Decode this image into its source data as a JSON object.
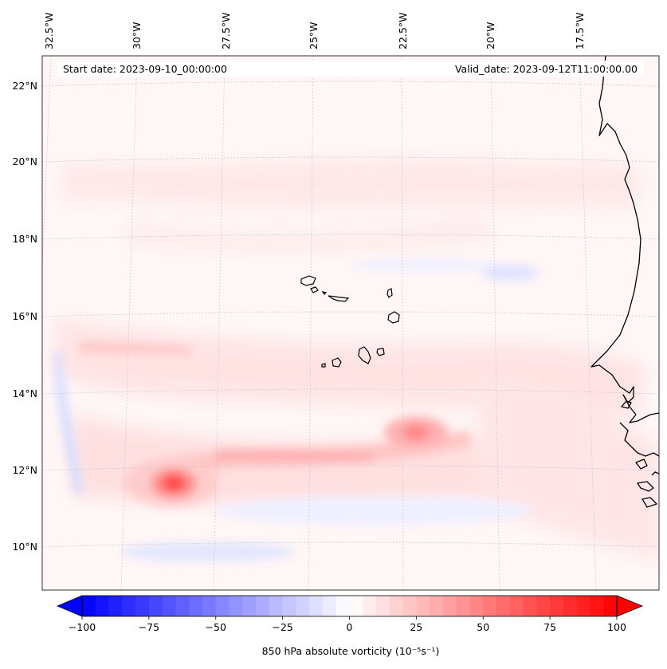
{
  "header": {
    "start_date": "Start date: 2023-09-10_00:00:00",
    "valid_date": "Valid_date: 2023-09-12T11:00:00.00"
  },
  "map": {
    "lon_labels": [
      "32.5°W",
      "30°W",
      "27.5°W",
      "25°W",
      "22.5°W",
      "20°W",
      "17.5°W"
    ],
    "lat_labels": [
      "22°N",
      "20°N",
      "18°N",
      "16°N",
      "14°N",
      "12°N",
      "10°N"
    ],
    "lon_values": [
      -32.5,
      -30,
      -27.5,
      -25,
      -22.5,
      -20,
      -17.5
    ],
    "lat_values": [
      22,
      20,
      18,
      16,
      14,
      12,
      10
    ],
    "features": {
      "islands": "Cape Verde islands",
      "coastline": "West African coast (Mauritania / Senegal / Guinea-Bissau)"
    }
  },
  "colorbar": {
    "label": "850 hPa absolute vorticity (10⁻⁵s⁻¹)",
    "tick_labels": [
      "−100",
      "−75",
      "−50",
      "−25",
      "0",
      "25",
      "50",
      "75",
      "100"
    ],
    "tick_values": [
      -100,
      -75,
      -50,
      -25,
      0,
      25,
      50,
      75,
      100
    ],
    "min": -100,
    "max": 100,
    "low_color": "#0000ff",
    "mid_color": "#ffffff",
    "high_color": "#ff0000",
    "extend": "both"
  },
  "vorticity_features": [
    {
      "name": "maximum near 30°W 11.6°N",
      "lon": -29.5,
      "lat": 11.6,
      "value": 75
    },
    {
      "name": "maximum near 22.5°W 12.9°N",
      "lon": -22.4,
      "lat": 12.9,
      "value": 40
    }
  ]
}
